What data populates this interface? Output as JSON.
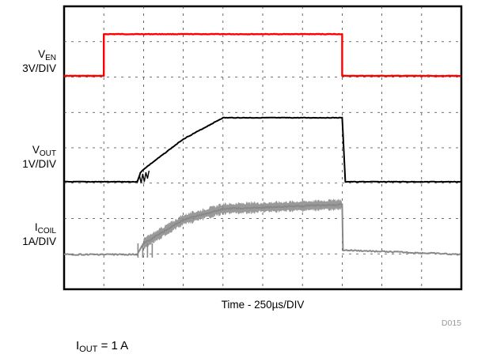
{
  "chart_data": {
    "type": "line",
    "title": "",
    "xlabel": "Time - 250µs/DIV",
    "grid": true,
    "x_divisions": 10,
    "y_divisions": 8,
    "x_unit": "µs",
    "x": [
      0,
      250,
      500,
      750,
      1000,
      1250,
      1500,
      1750,
      2000,
      2250,
      2500
    ],
    "series": [
      {
        "name": "V_EN",
        "label_main": "V",
        "label_sub": "EN",
        "scale": "3V/DIV",
        "color": "#ff0000",
        "time_us": [
          0,
          250,
          250,
          1750,
          1750,
          2500
        ],
        "value": [
          0,
          0,
          3.3,
          3.3,
          0,
          0
        ]
      },
      {
        "name": "V_OUT",
        "label_main": "V",
        "label_sub": "OUT",
        "scale": "1V/DIV",
        "color": "#000000",
        "time_us": [
          0,
          460,
          480,
          500,
          750,
          1000,
          1750,
          1770,
          2500
        ],
        "value": [
          0,
          0,
          0.25,
          0.35,
          1.2,
          1.8,
          1.8,
          0,
          0
        ]
      },
      {
        "name": "I_COIL",
        "label_main": "I",
        "label_sub": "COIL",
        "scale": "1A/DIV",
        "color": "#888888",
        "time_us": [
          0,
          460,
          500,
          750,
          1000,
          1750,
          1755,
          2500
        ],
        "value": [
          0,
          0,
          0.25,
          0.8,
          1.05,
          1.15,
          0.1,
          0
        ]
      }
    ]
  },
  "tag": "D015",
  "condition": {
    "main": "I",
    "sub": "OUT",
    "rest": " = 1 A"
  }
}
